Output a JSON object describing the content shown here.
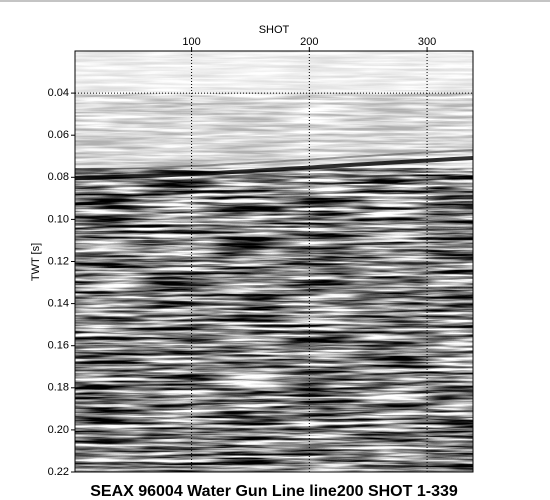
{
  "chart_data": {
    "type": "seismic",
    "title": "SEAX 96004 Water Gun Line line200 SHOT 1-339",
    "x_label": "SHOT",
    "y_label": "TWT [s]",
    "xlim": [
      1,
      339
    ],
    "xticks": [
      100,
      200,
      300
    ],
    "ylim": [
      0.02,
      0.22
    ],
    "y_inverted": true,
    "yticks": [
      0.04,
      0.06,
      0.08,
      {
        "value": 0.1,
        "label": "0.10"
      },
      0.12,
      0.14,
      0.16,
      0.18,
      {
        "value": 0.2,
        "label": "0.20"
      },
      0.22
    ],
    "x_grid": true,
    "hlines": [
      0.04
    ]
  }
}
